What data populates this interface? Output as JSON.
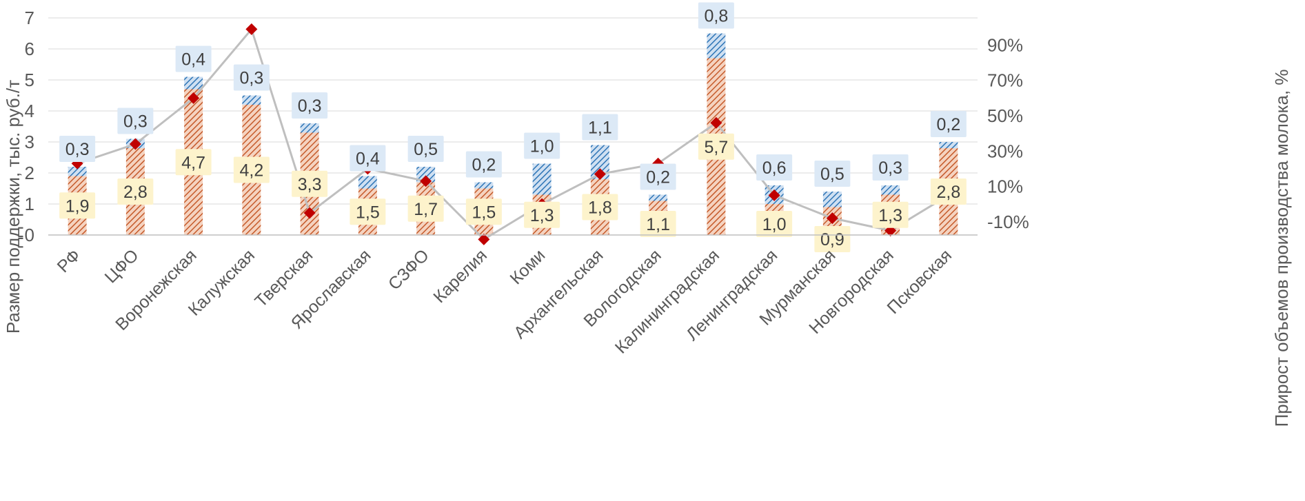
{
  "chart_data": {
    "type": "bar",
    "stacked": true,
    "categories": [
      "РФ",
      "ЦФО",
      "Воронежская",
      "Калужская",
      "Тверская",
      "Ярославская",
      "СЗФО",
      "Карелия",
      "Коми",
      "Архангельская",
      "Вологодская",
      "Калининградская",
      "Ленинградская",
      "Мурманская",
      "Новгородская",
      "Псковская"
    ],
    "series": [
      {
        "values": [
          1.9,
          2.8,
          4.7,
          4.2,
          3.3,
          1.5,
          1.7,
          1.5,
          1.3,
          1.8,
          1.1,
          5.7,
          1.0,
          0.9,
          1.3,
          2.8
        ],
        "labels": [
          "1,9",
          "2,8",
          "4,7",
          "4,2",
          "3,3",
          "1,5",
          "1,7",
          "1,5",
          "1,3",
          "1,8",
          "1,1",
          "5,7",
          "1,0",
          "0,9",
          "1,3",
          "2,8"
        ],
        "color": "#c55a2a",
        "label_bg": "#fdf3cc",
        "axis": "left"
      },
      {
        "values": [
          0.3,
          0.3,
          0.4,
          0.3,
          0.3,
          0.4,
          0.5,
          0.2,
          1.0,
          1.1,
          0.2,
          0.8,
          0.6,
          0.5,
          0.3,
          0.2
        ],
        "labels": [
          "0,3",
          "0,3",
          "0,4",
          "0,3",
          "0,3",
          "0,4",
          "0,5",
          "0,2",
          "1,0",
          "1,1",
          "0,2",
          "0,8",
          "0,6",
          "0,5",
          "0,3",
          "0,2"
        ],
        "color": "#2e75b6",
        "label_bg": "#dce9f6",
        "axis": "left"
      },
      {
        "type": "line",
        "axis": "right",
        "values": [
          23,
          34,
          60,
          99,
          -5,
          20,
          13,
          -20,
          0,
          17,
          23,
          46,
          5,
          -8,
          -15,
          5
        ],
        "line_color": "#bfbfbf",
        "marker_color": "#c00000"
      }
    ],
    "ylabel": "Размер поддержки, тыс. руб./т",
    "ylabel_right": "Прирост объемов производства молока, %",
    "ylim": [
      0,
      7
    ],
    "yticks": [
      "0",
      "1",
      "2",
      "3",
      "4",
      "5",
      "6",
      "7"
    ],
    "ylim_right": [
      -17.5,
      105.4
    ],
    "yticks_right": [
      -10,
      10,
      30,
      50,
      70,
      90
    ],
    "yticks_right_labels": [
      "-10%",
      "10%",
      "30%",
      "50%",
      "70%",
      "90%"
    ],
    "grid": true,
    "legend": "none"
  }
}
